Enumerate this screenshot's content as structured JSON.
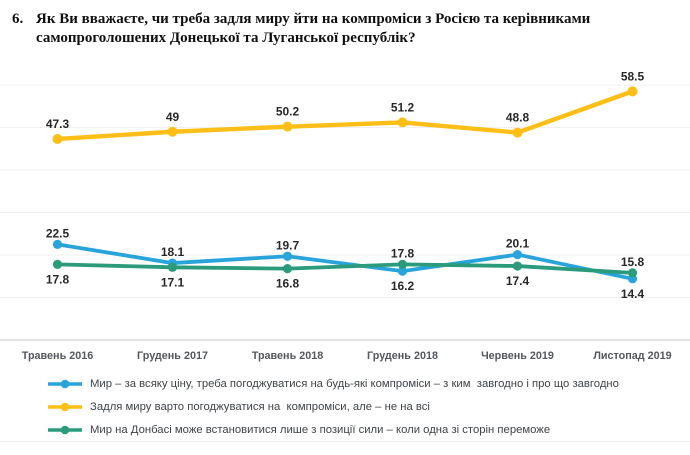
{
  "title": {
    "number": "6.",
    "text": "Як Ви вважаєте, чи треба задля миру йти на компроміси з Росією та керівниками самопроголошених Донецької та Луганської республік?"
  },
  "chart_data": {
    "type": "line",
    "categories": [
      "Травень 2016",
      "Грудень 2017",
      "Травень 2018",
      "Грудень 2018",
      "Червень 2019",
      "Листопад 2019"
    ],
    "series": [
      {
        "name": "Мир – за всяку ціну, треба погоджуватися на будь-які компроміси – з ким  завгодно і про що завгодно",
        "color": "#29a4da",
        "values": [
          22.5,
          18.1,
          19.7,
          16.2,
          20.1,
          14.4
        ],
        "label_side": [
          "above",
          "above",
          "above",
          "below",
          "above",
          "below"
        ]
      },
      {
        "name": "Задля миру варто погоджуватися на  компроміси, але – не на всі",
        "color": "#fdbf17",
        "values": [
          47.3,
          49,
          50.2,
          51.2,
          48.8,
          58.5
        ],
        "label_side": [
          "above",
          "above",
          "above",
          "above",
          "above",
          "above"
        ]
      },
      {
        "name": "Мир на Донбасі може встановитися лише з позиції сили – коли одна зі сторін переможе",
        "color": "#2b9b7c",
        "values": [
          17.8,
          17.1,
          16.8,
          17.8,
          17.4,
          15.8
        ],
        "label_side": [
          "below",
          "below",
          "below",
          "above",
          "below",
          "above"
        ]
      }
    ],
    "title": "",
    "xlabel": "",
    "ylabel": "",
    "ylim": [
      0,
      60
    ],
    "grid": true,
    "grid_step": 10,
    "y_tick_labels_visible": false,
    "value_labels": true,
    "legend_position": "bottom",
    "label_color": "#272727",
    "axis_label_color": "#54575c",
    "gridline_color": "#efefef",
    "axis_line_color": "#d9d9d9"
  }
}
